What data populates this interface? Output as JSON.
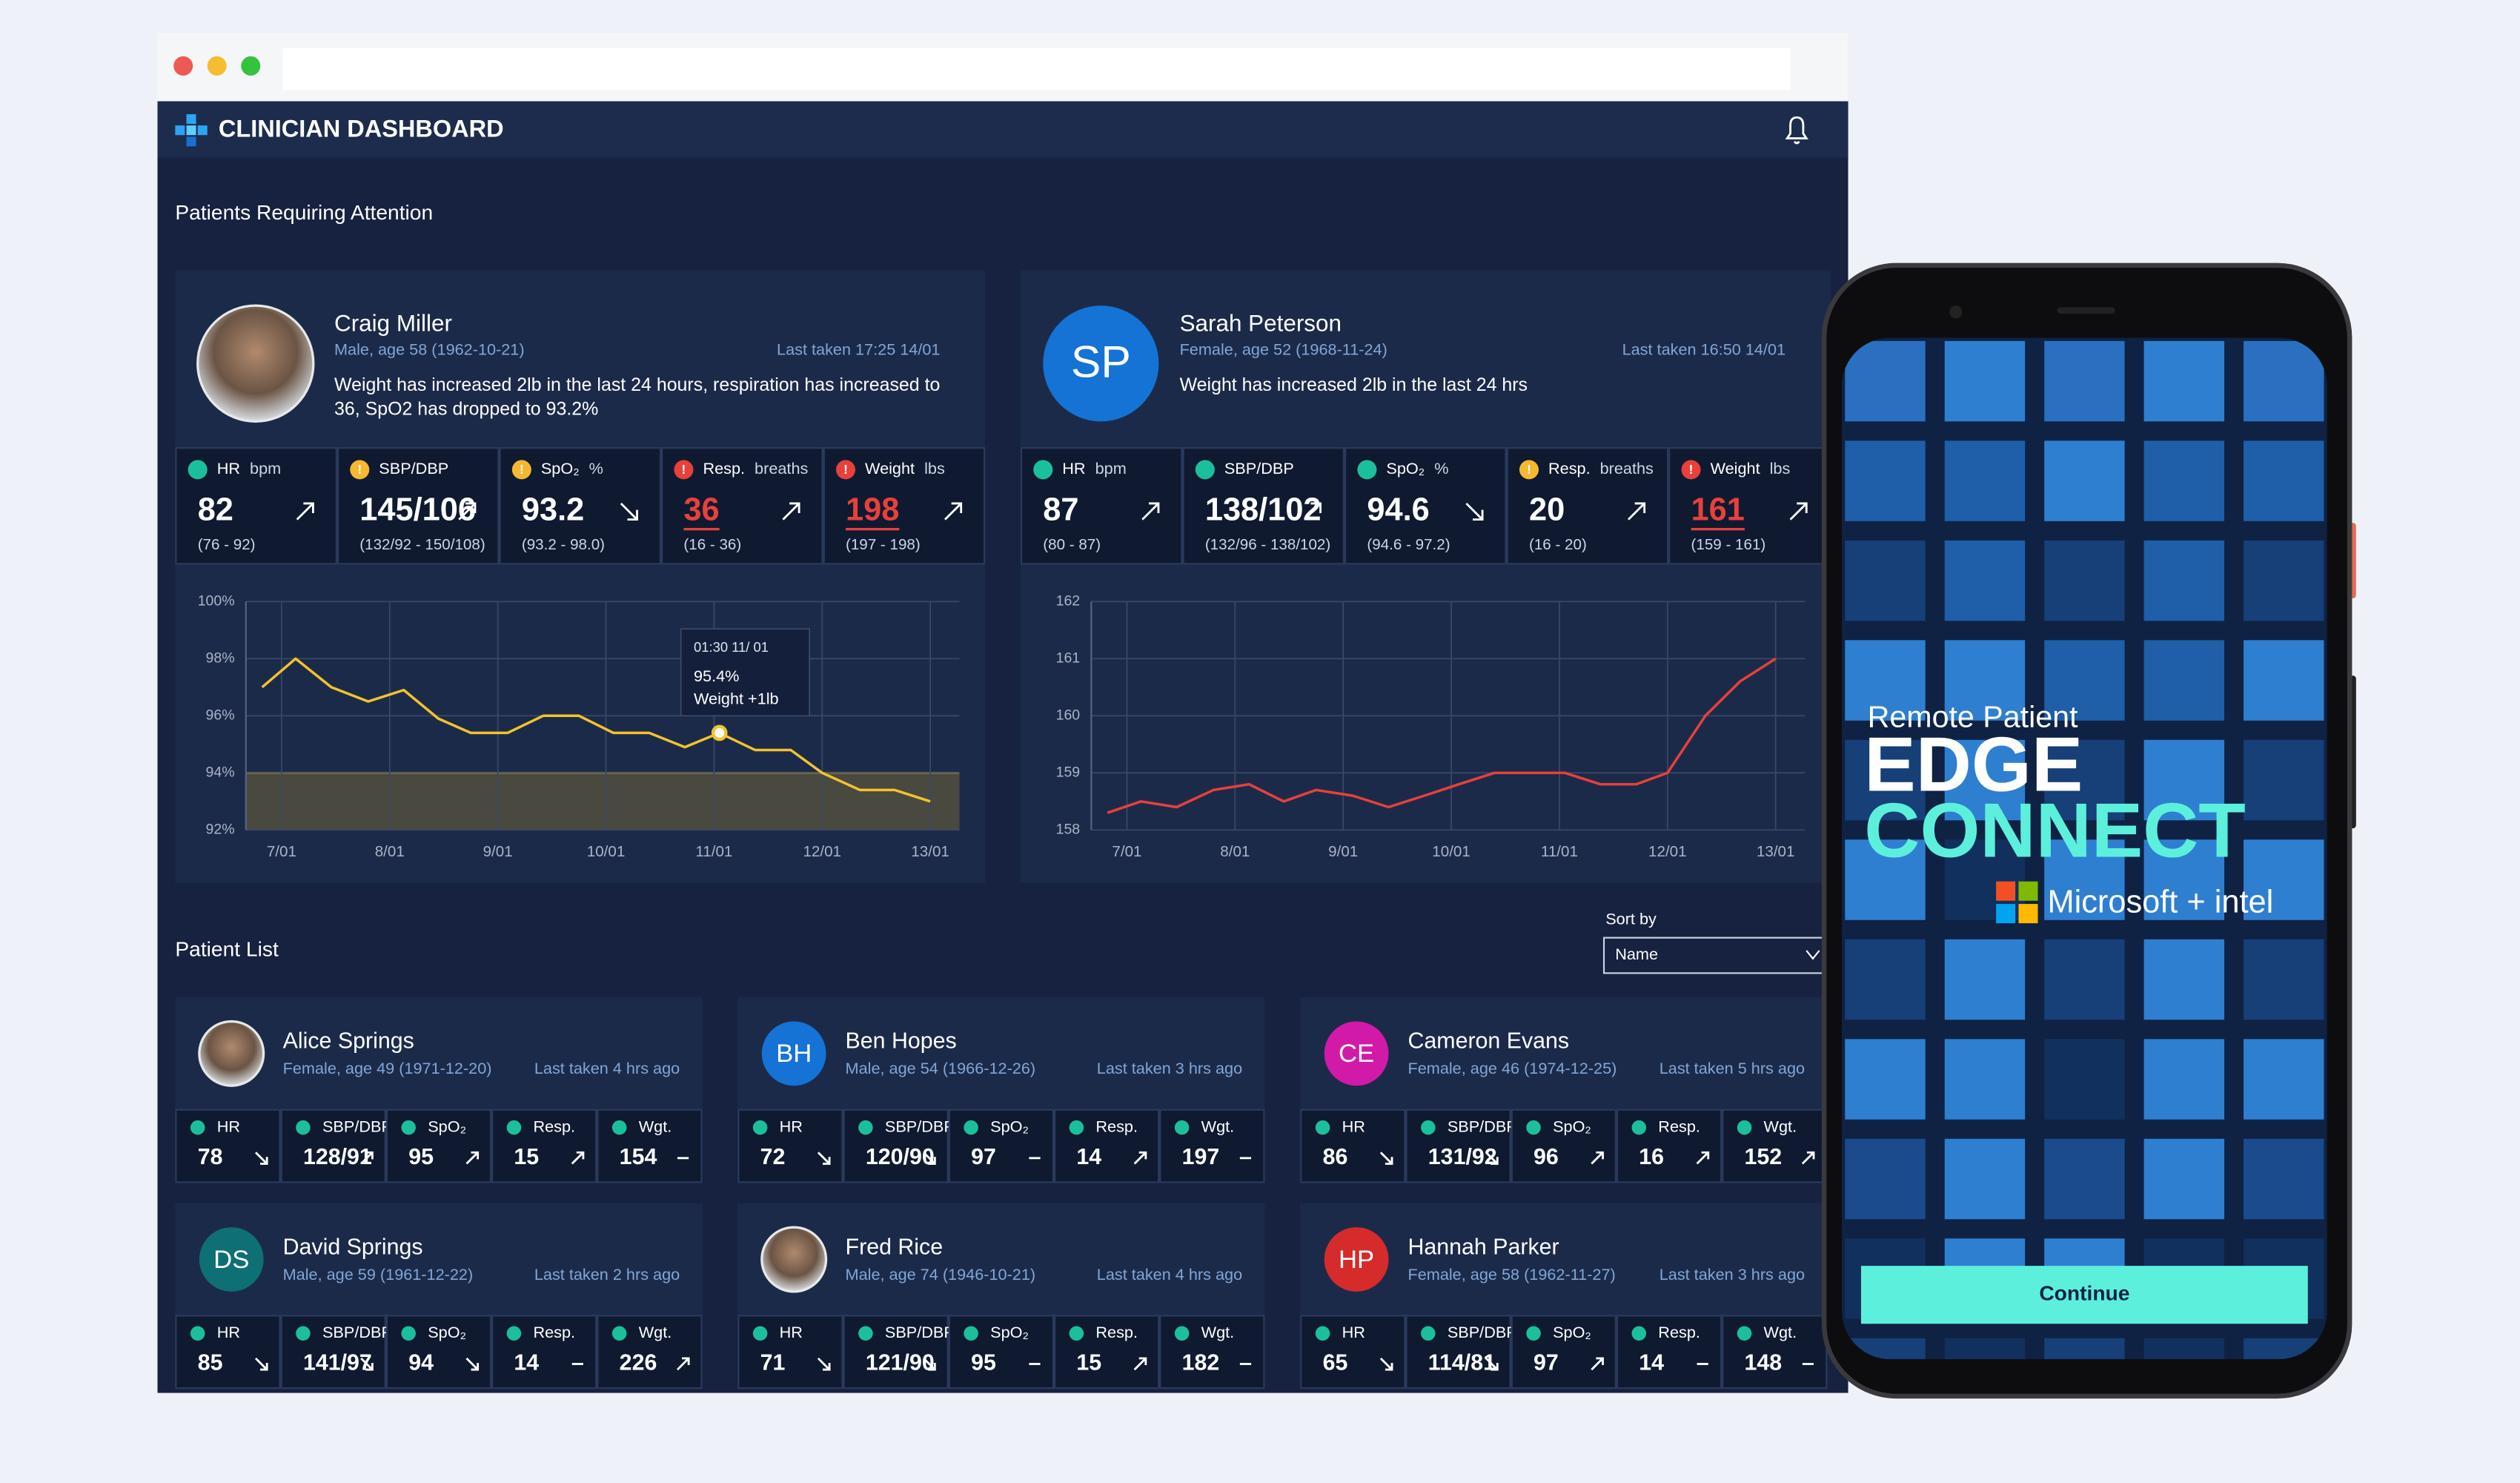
{
  "window": {
    "title": "CLINICIAN DASHBOARD"
  },
  "attention": {
    "heading": "Patients Requiring Attention",
    "patients": [
      {
        "name": "Craig Miller",
        "info": "Male, age 58 (1962-10-21)",
        "last_taken": "Last taken 17:25 14/01",
        "message": "Weight has increased 2lb in the last 24 hours, respiration has increased to 36, SpO2 has dropped to 93.2%",
        "vitals": [
          {
            "label": "HR",
            "unit": "bpm",
            "value": 82,
            "range": "(76 - 92)",
            "status": "ok",
            "trend": "up"
          },
          {
            "label": "SBP/DBP",
            "value": "145/106",
            "range": "(132/92 - 150/108)",
            "status": "warn",
            "trend": "up"
          },
          {
            "label": "SpO₂",
            "unit": "%",
            "value": 93.2,
            "range": "(93.2 - 98.0)",
            "status": "warn",
            "trend": "down"
          },
          {
            "label": "Resp.",
            "unit": "breaths",
            "value": 36,
            "range": "(16 - 36)",
            "status": "alert",
            "trend": "up"
          },
          {
            "label": "Weight",
            "unit": "lbs",
            "value": 198,
            "range": "(197 - 198)",
            "status": "alert",
            "trend": "up"
          }
        ],
        "chart": {
          "type": "line",
          "color": "#f2c32c",
          "x": [
            6.82,
            7.13,
            7.46,
            7.8,
            8.13,
            8.45,
            8.75,
            9.09,
            9.42,
            9.75,
            10.07,
            10.4,
            10.73,
            11.05,
            11.38,
            11.71,
            12.0,
            12.35,
            12.67,
            13.0
          ],
          "values": [
            97.0,
            98.0,
            97.0,
            96.5,
            96.9,
            95.9,
            95.4,
            95.4,
            96.0,
            96.0,
            95.4,
            95.4,
            94.9,
            95.4,
            94.8,
            94.8,
            94.0,
            93.4,
            93.4,
            93.0
          ],
          "xlim": [
            6.67,
            13.27
          ],
          "xticks": [
            {
              "value": 7,
              "label": "7/01"
            },
            {
              "value": 8,
              "label": "8/01"
            },
            {
              "value": 9,
              "label": "9/01"
            },
            {
              "value": 10,
              "label": "10/01"
            },
            {
              "value": 11,
              "label": "11/01"
            },
            {
              "value": 12,
              "label": "12/01"
            },
            {
              "value": 13,
              "label": "13/01"
            }
          ],
          "ylim": [
            92,
            100
          ],
          "yticks": [
            {
              "value": 92,
              "label": "92%"
            },
            {
              "value": 94,
              "label": "94%"
            },
            {
              "value": 96,
              "label": "96%"
            },
            {
              "value": 98,
              "label": "98%"
            },
            {
              "value": 100,
              "label": "100%"
            }
          ],
          "band": [
            92,
            94
          ],
          "band_color": "#c8a22e",
          "grid": true,
          "tooltip": {
            "time": "01:30 11/ 01",
            "x": 11.05,
            "value": 95.4,
            "label": "95.4%",
            "note": "Weight +1lb"
          }
        }
      },
      {
        "name": "Sarah Peterson",
        "initials": "SP",
        "avatar_color": "#1473d4",
        "info": "Female, age 52 (1968-11-24)",
        "last_taken": "Last taken 16:50 14/01",
        "message": "Weight has increased 2lb in the last 24 hrs",
        "vitals": [
          {
            "label": "HR",
            "unit": "bpm",
            "value": 87,
            "range": "(80 - 87)",
            "status": "ok",
            "trend": "up"
          },
          {
            "label": "SBP/DBP",
            "value": "138/102",
            "range": "(132/96 - 138/102)",
            "status": "ok",
            "trend": "up"
          },
          {
            "label": "SpO₂",
            "unit": "%",
            "value": 94.6,
            "range": "(94.6 - 97.2)",
            "status": "ok",
            "trend": "down"
          },
          {
            "label": "Resp.",
            "unit": "breaths",
            "value": 20,
            "range": "(16 - 20)",
            "status": "warn",
            "trend": "up"
          },
          {
            "label": "Weight",
            "unit": "lbs",
            "value": 161,
            "range": "(159 - 161)",
            "status": "alert",
            "trend": "up"
          }
        ],
        "chart": {
          "type": "line",
          "color": "#e8403b",
          "x": [
            6.82,
            7.13,
            7.46,
            7.8,
            8.13,
            8.45,
            8.75,
            9.09,
            9.42,
            9.75,
            10.07,
            10.4,
            10.73,
            11.05,
            11.38,
            11.71,
            12.0,
            12.35,
            12.67,
            13.0
          ],
          "values": [
            158.3,
            158.5,
            158.4,
            158.7,
            158.8,
            158.5,
            158.7,
            158.6,
            158.4,
            158.6,
            158.8,
            159.0,
            159.0,
            159.0,
            158.8,
            158.8,
            159.0,
            160.0,
            160.6,
            161.0
          ],
          "xlim": [
            6.67,
            13.27
          ],
          "xticks": [
            {
              "value": 7,
              "label": "7/01"
            },
            {
              "value": 8,
              "label": "8/01"
            },
            {
              "value": 9,
              "label": "9/01"
            },
            {
              "value": 10,
              "label": "10/01"
            },
            {
              "value": 11,
              "label": "11/01"
            },
            {
              "value": 12,
              "label": "12/01"
            },
            {
              "value": 13,
              "label": "13/01"
            }
          ],
          "ylim": [
            158,
            162
          ],
          "yticks": [
            158,
            159,
            160,
            161,
            162
          ],
          "grid": true
        }
      }
    ]
  },
  "list": {
    "heading": "Patient List",
    "sort_label": "Sort by",
    "sort_value": "Name",
    "patients": [
      {
        "name": "Alice Springs",
        "info": "Female, age 49 (1971-12-20)",
        "last_taken": "Last taken 4 hrs ago",
        "vitals": [
          {
            "label": "HR",
            "value": 78,
            "trend": "down"
          },
          {
            "label": "SBP/DBP",
            "value": "128/91",
            "trend": "up"
          },
          {
            "label": "SpO₂",
            "value": 95,
            "trend": "up"
          },
          {
            "label": "Resp.",
            "value": 15,
            "trend": "up"
          },
          {
            "label": "Wgt.",
            "value": 154,
            "trend": "flat"
          }
        ]
      },
      {
        "name": "Ben Hopes",
        "initials": "BH",
        "avatar_color": "#1473d4",
        "info": "Male, age 54 (1966-12-26)",
        "last_taken": "Last taken 3 hrs ago",
        "vitals": [
          {
            "label": "HR",
            "value": 72,
            "trend": "down"
          },
          {
            "label": "SBP/DBP",
            "value": "120/90",
            "trend": "down"
          },
          {
            "label": "SpO₂",
            "value": 97,
            "trend": "flat"
          },
          {
            "label": "Resp.",
            "value": 14,
            "trend": "up"
          },
          {
            "label": "Wgt.",
            "value": 197,
            "trend": "flat"
          }
        ]
      },
      {
        "name": "Cameron Evans",
        "initials": "CE",
        "avatar_color": "#d11aa8",
        "info": "Female, age 46 (1974-12-25)",
        "last_taken": "Last taken 5 hrs ago",
        "vitals": [
          {
            "label": "HR",
            "value": 86,
            "trend": "down"
          },
          {
            "label": "SBP/DBP",
            "value": "131/92",
            "trend": "down"
          },
          {
            "label": "SpO₂",
            "value": 96,
            "trend": "up"
          },
          {
            "label": "Resp.",
            "value": 16,
            "trend": "up"
          },
          {
            "label": "Wgt.",
            "value": 152,
            "trend": "up"
          }
        ]
      },
      {
        "name": "David Springs",
        "initials": "DS",
        "avatar_color": "#0e6f75",
        "info": "Male, age 59 (1961-12-22)",
        "last_taken": "Last taken 2 hrs ago",
        "vitals": [
          {
            "label": "HR",
            "value": 85,
            "trend": "down"
          },
          {
            "label": "SBP/DBP",
            "value": "141/97",
            "trend": "down"
          },
          {
            "label": "SpO₂",
            "value": 94,
            "trend": "down"
          },
          {
            "label": "Resp.",
            "value": 14,
            "trend": "flat"
          },
          {
            "label": "Wgt.",
            "value": 226,
            "trend": "up"
          }
        ]
      },
      {
        "name": "Fred Rice",
        "info": "Male, age 74 (1946-10-21)",
        "last_taken": "Last taken 4 hrs ago",
        "vitals": [
          {
            "label": "HR",
            "value": 71,
            "trend": "down"
          },
          {
            "label": "SBP/DBP",
            "value": "121/90",
            "trend": "down"
          },
          {
            "label": "SpO₂",
            "value": 95,
            "trend": "flat"
          },
          {
            "label": "Resp.",
            "value": 15,
            "trend": "up"
          },
          {
            "label": "Wgt.",
            "value": 182,
            "trend": "flat"
          }
        ]
      },
      {
        "name": "Hannah Parker",
        "initials": "HP",
        "avatar_color": "#d52b2b",
        "info": "Female, age 58 (1962-11-27)",
        "last_taken": "Last taken 3 hrs ago",
        "vitals": [
          {
            "label": "HR",
            "value": 65,
            "trend": "down"
          },
          {
            "label": "SBP/DBP",
            "value": "114/81",
            "trend": "down"
          },
          {
            "label": "SpO₂",
            "value": 97,
            "trend": "up"
          },
          {
            "label": "Resp.",
            "value": 14,
            "trend": "flat"
          },
          {
            "label": "Wgt.",
            "value": 148,
            "trend": "flat"
          }
        ]
      }
    ]
  },
  "phone": {
    "tagline": "Remote Patient",
    "brand_line1": "EDGE",
    "brand_line2": "CONNECT",
    "partners": "Microsoft + intel",
    "button": "Continue"
  }
}
